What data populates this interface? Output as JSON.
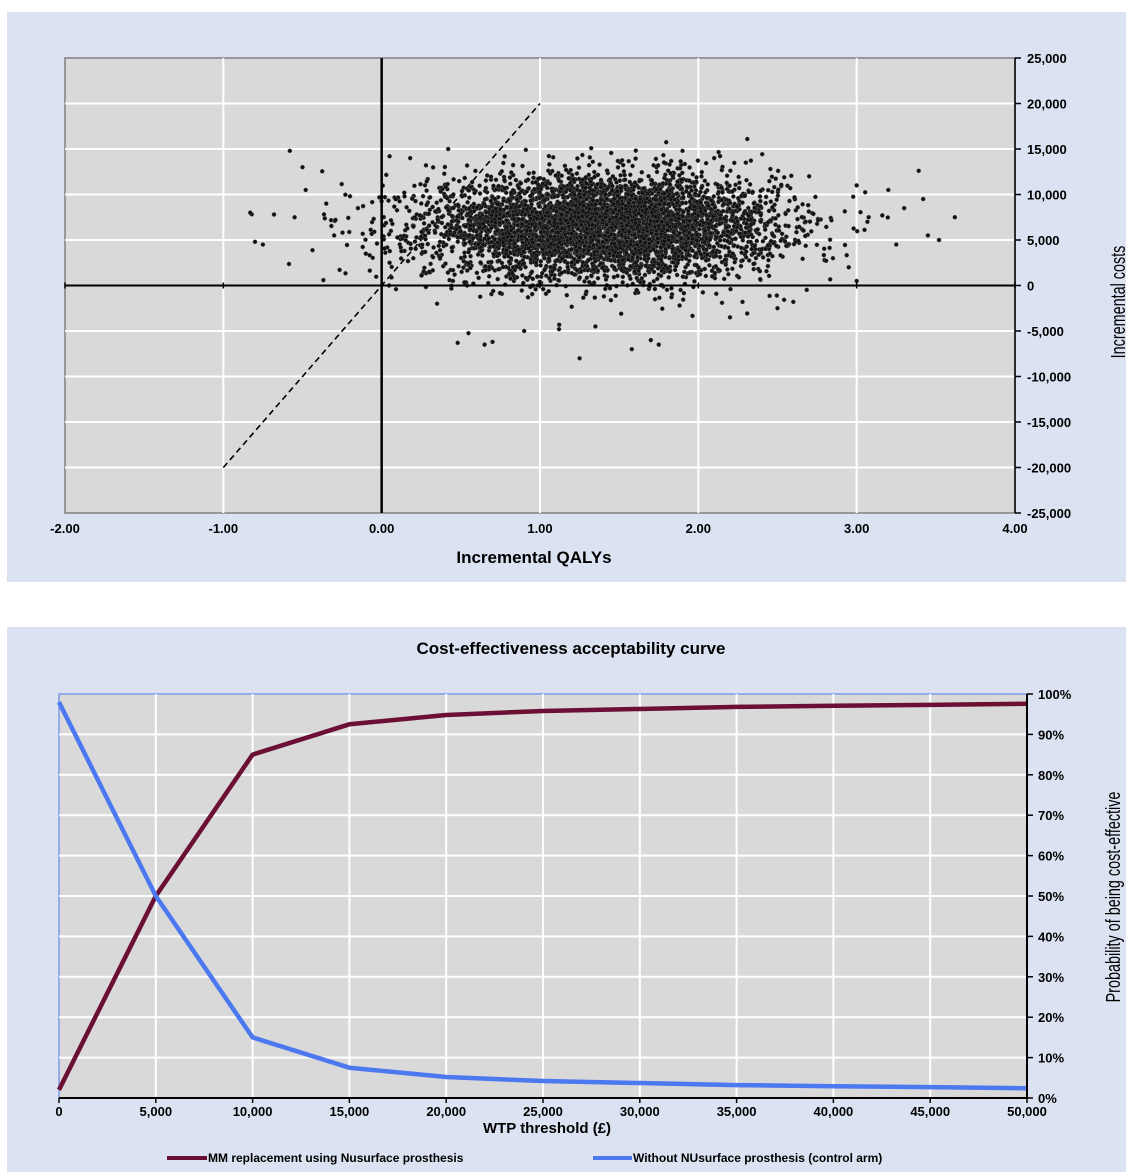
{
  "chart_data": [
    {
      "type": "scatter",
      "title": "",
      "xlabel": "Incremental QALYs",
      "ylabel": "Incremental costs",
      "xlim": [
        -2,
        4
      ],
      "ylim": [
        -25000,
        25000
      ],
      "x_ticks": [
        "-2.00",
        "-1.00",
        "0.00",
        "1.00",
        "2.00",
        "3.00",
        "4.00"
      ],
      "y_ticks": [
        "25,000",
        "20,000",
        "15,000",
        "10,000",
        "5,000",
        "0",
        "-5,000",
        "-10,000",
        "-15,000",
        "-20,000",
        "-25,000"
      ],
      "grid": true,
      "reference_line": {
        "style": "dashed",
        "x": [
          -1,
          1
        ],
        "y": [
          -20000,
          20000
        ]
      },
      "point_cloud": {
        "count": 5000,
        "mean_x": 1.4,
        "mean_y": 6500,
        "sd_x": 0.55,
        "sd_y": 2800
      },
      "points": [
        {
          "x": -0.58,
          "y": 14800
        },
        {
          "x": -0.5,
          "y": 13000
        },
        {
          "x": -0.83,
          "y": 8000
        },
        {
          "x": -0.8,
          "y": 4800
        },
        {
          "x": -0.75,
          "y": 4500
        },
        {
          "x": -0.68,
          "y": 7800
        },
        {
          "x": -0.55,
          "y": 7500
        },
        {
          "x": -0.48,
          "y": 10500
        },
        {
          "x": -0.35,
          "y": 9000
        },
        {
          "x": -0.3,
          "y": 5500
        },
        {
          "x": -0.2,
          "y": 9800
        },
        {
          "x": -0.15,
          "y": 8500
        },
        {
          "x": -0.1,
          "y": 3500
        },
        {
          "x": 0.05,
          "y": 14200
        },
        {
          "x": 0.18,
          "y": 14000
        },
        {
          "x": 0.28,
          "y": 13200
        },
        {
          "x": 0.42,
          "y": 15000
        },
        {
          "x": 0.35,
          "y": -2000
        },
        {
          "x": 0.48,
          "y": -6300
        },
        {
          "x": 0.65,
          "y": -6500
        },
        {
          "x": 0.7,
          "y": -6200
        },
        {
          "x": 0.9,
          "y": -5000
        },
        {
          "x": 1.12,
          "y": -4800
        },
        {
          "x": 1.25,
          "y": -8000
        },
        {
          "x": 1.35,
          "y": -4500
        },
        {
          "x": 1.58,
          "y": -7000
        },
        {
          "x": 1.7,
          "y": -6000
        },
        {
          "x": 1.75,
          "y": -6500
        },
        {
          "x": 2.2,
          "y": -3500
        },
        {
          "x": 2.5,
          "y": -2500
        },
        {
          "x": 2.6,
          "y": -1800
        },
        {
          "x": 1.9,
          "y": 14800
        },
        {
          "x": 2.1,
          "y": 14000
        },
        {
          "x": 2.3,
          "y": 13500
        },
        {
          "x": 2.7,
          "y": 12000
        },
        {
          "x": 3.0,
          "y": 11000
        },
        {
          "x": 3.2,
          "y": 10500
        },
        {
          "x": 3.3,
          "y": 8500
        },
        {
          "x": 3.42,
          "y": 9500
        },
        {
          "x": 3.45,
          "y": 5500
        },
        {
          "x": 3.52,
          "y": 5000
        },
        {
          "x": 3.62,
          "y": 7500
        },
        {
          "x": 3.25,
          "y": 4500
        },
        {
          "x": 3.0,
          "y": 500
        },
        {
          "x": 2.85,
          "y": 3000
        },
        {
          "x": 2.95,
          "y": 2000
        },
        {
          "x": 0.3,
          "y": 1500
        },
        {
          "x": 0.2,
          "y": 3000
        },
        {
          "x": 0.45,
          "y": 500
        },
        {
          "x": 0.05,
          "y": 2500
        }
      ]
    },
    {
      "type": "line",
      "title": "Cost-effectiveness acceptability curve",
      "xlabel": "WTP threshold (£)",
      "ylabel": "Probability of being cost-effective",
      "x": [
        0,
        5000,
        10000,
        15000,
        20000,
        25000,
        30000,
        35000,
        40000,
        45000,
        50000
      ],
      "xlim": [
        0,
        50000
      ],
      "ylim": [
        0,
        1
      ],
      "x_ticks": [
        "0",
        "5,000",
        "10,000",
        "15,000",
        "20,000",
        "25,000",
        "30,000",
        "35,000",
        "40,000",
        "45,000",
        "50,000"
      ],
      "y_ticks": [
        "0%",
        "10%",
        "20%",
        "30%",
        "40%",
        "50%",
        "60%",
        "70%",
        "80%",
        "90%",
        "100%"
      ],
      "grid": true,
      "legend_position": "bottom",
      "series": [
        {
          "name": "MM replacement using Nusurface prosthesis",
          "color": "#6b0f35",
          "values": [
            0.02,
            0.5,
            0.85,
            0.925,
            0.948,
            0.958,
            0.963,
            0.968,
            0.971,
            0.973,
            0.976
          ]
        },
        {
          "name": "Without NUsurface prosthesis (control arm)",
          "color": "#4d79f0",
          "values": [
            0.98,
            0.5,
            0.15,
            0.075,
            0.052,
            0.042,
            0.037,
            0.032,
            0.029,
            0.027,
            0.024
          ]
        }
      ]
    }
  ]
}
